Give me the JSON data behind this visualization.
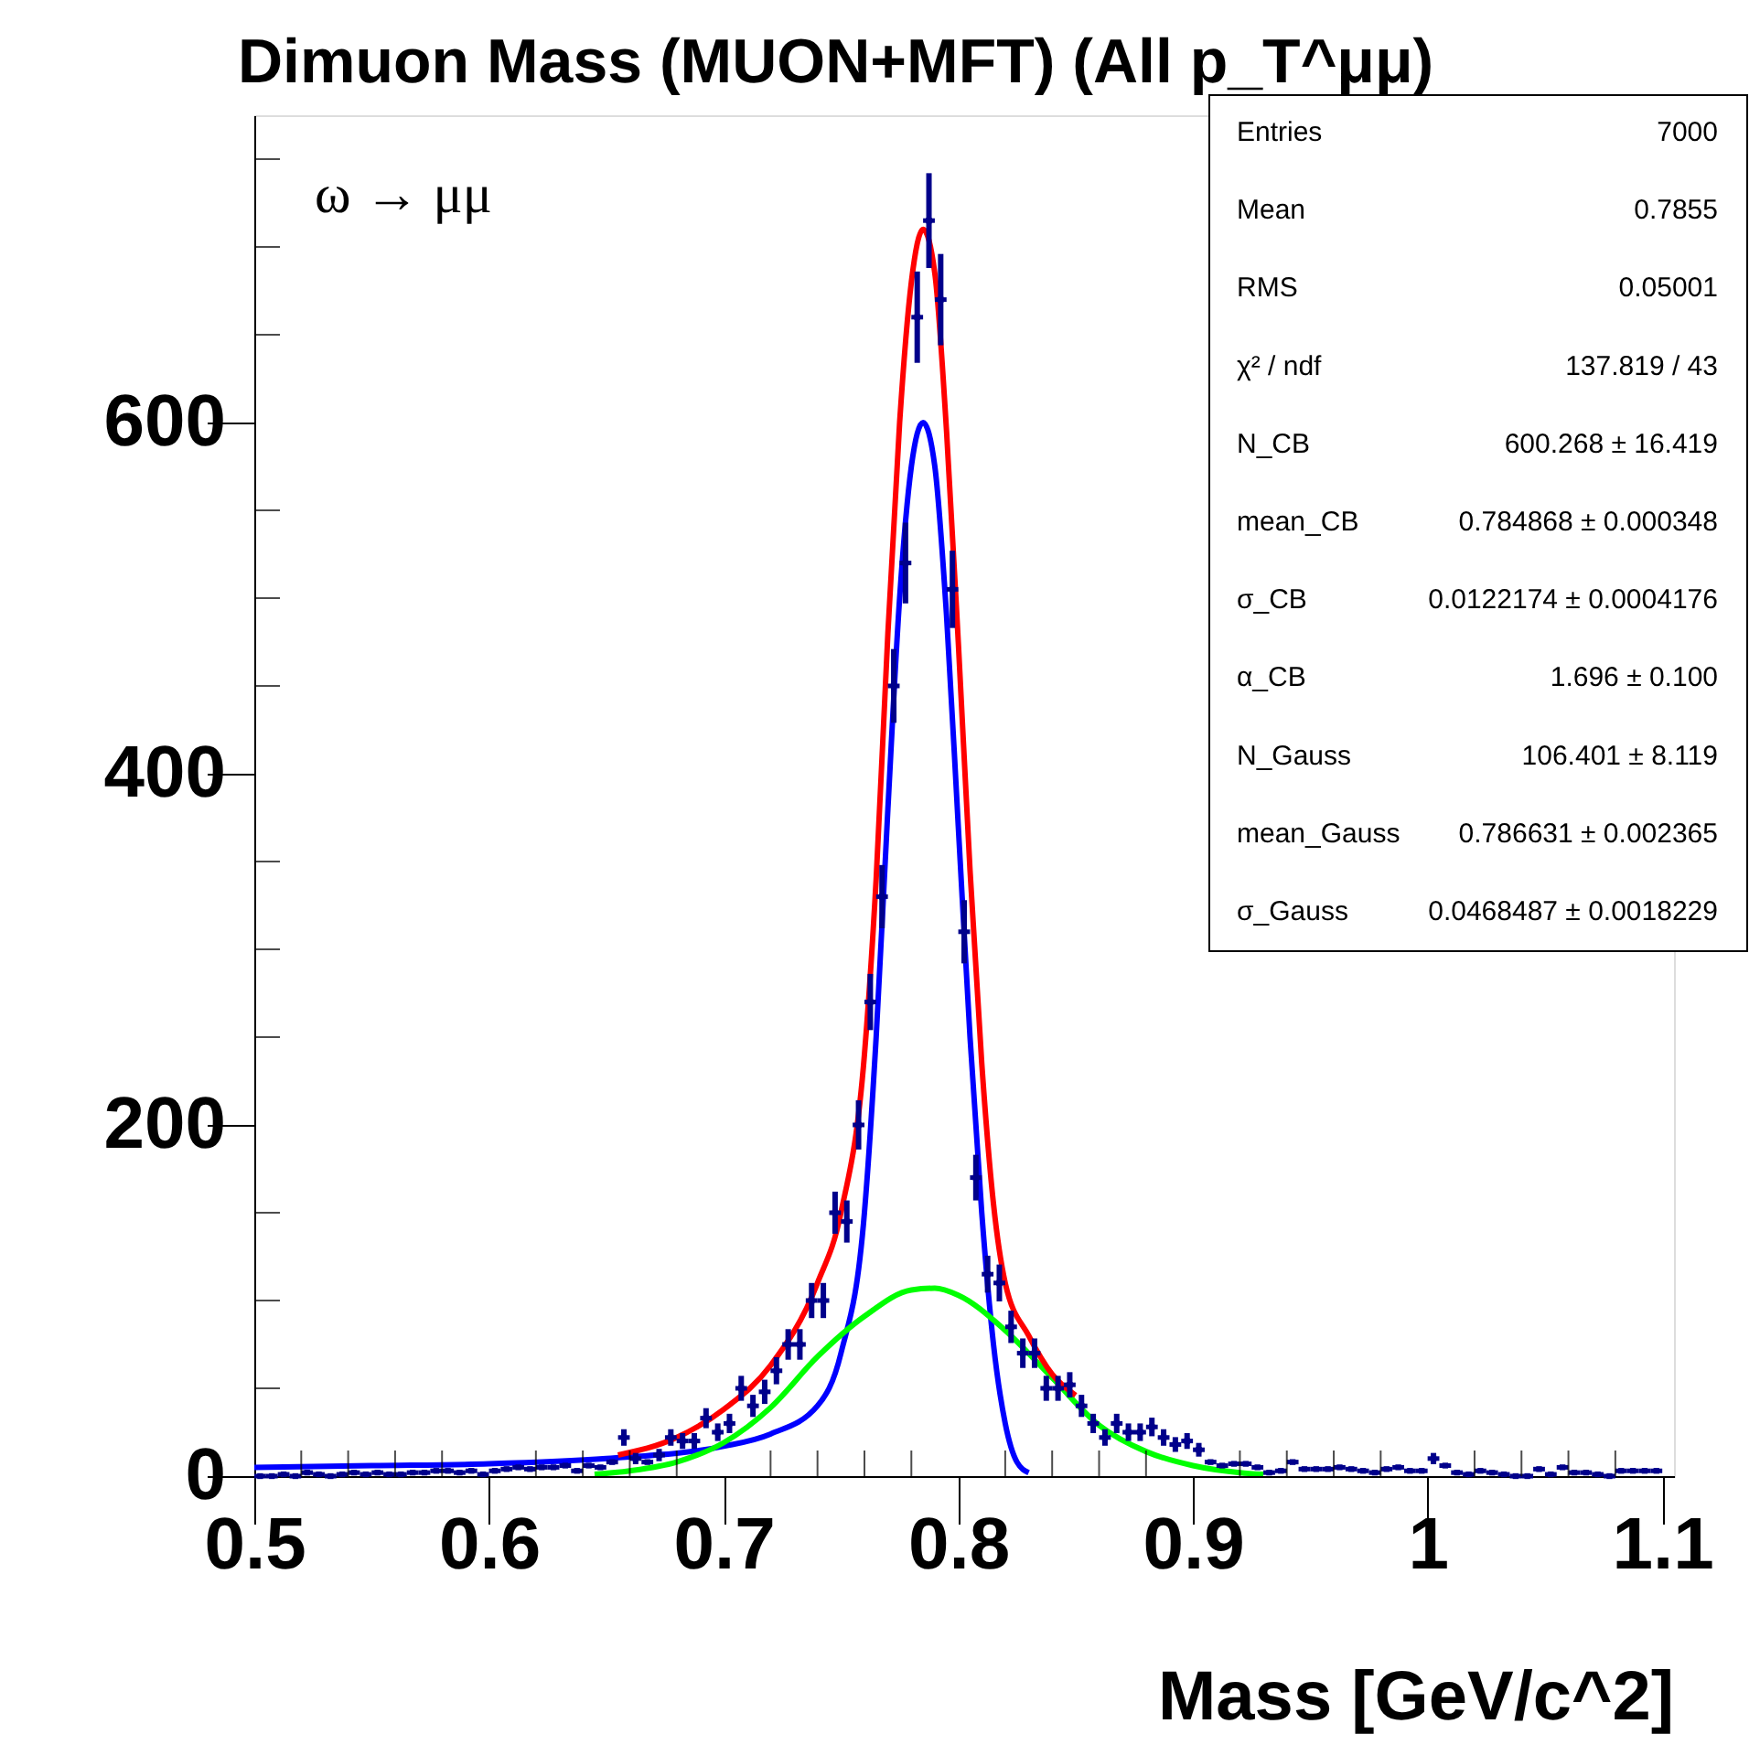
{
  "chart_data": {
    "type": "scatter",
    "title": "Dimuon Mass (MUON+MFT) (All p_T^μμ)",
    "xlabel": "Mass  [GeV/c^2]",
    "xlim": [
      0.5,
      1.105
    ],
    "ylim": [
      0,
      775
    ],
    "xticks": [
      0.5,
      {
        "value": 0.52,
        "label": null
      },
      {
        "value": 0.54,
        "label": null
      },
      {
        "value": 0.56,
        "label": null
      },
      {
        "value": 0.58,
        "label": null
      },
      0.6,
      {
        "value": 0.62,
        "label": null
      },
      {
        "value": 0.64,
        "label": null
      },
      {
        "value": 0.66,
        "label": null
      },
      {
        "value": 0.68,
        "label": null
      },
      0.7,
      {
        "value": 0.72,
        "label": null
      },
      {
        "value": 0.74,
        "label": null
      },
      {
        "value": 0.76,
        "label": null
      },
      {
        "value": 0.78,
        "label": null
      },
      0.8,
      {
        "value": 0.82,
        "label": null
      },
      {
        "value": 0.84,
        "label": null
      },
      {
        "value": 0.86,
        "label": null
      },
      {
        "value": 0.88,
        "label": null
      },
      0.9,
      {
        "value": 0.92,
        "label": null
      },
      {
        "value": 0.94,
        "label": null
      },
      {
        "value": 0.96,
        "label": null
      },
      {
        "value": 0.98,
        "label": null
      },
      1,
      {
        "value": 1.02,
        "label": null
      },
      {
        "value": 1.04,
        "label": null
      },
      {
        "value": 1.06,
        "label": null
      },
      {
        "value": 1.08,
        "label": null
      },
      1.1
    ],
    "yticks": [
      0,
      {
        "value": 50,
        "label": null
      },
      {
        "value": 100,
        "label": null
      },
      {
        "value": 150,
        "label": null
      },
      200,
      {
        "value": 250,
        "label": null
      },
      {
        "value": 300,
        "label": null
      },
      {
        "value": 350,
        "label": null
      },
      400,
      {
        "value": 450,
        "label": null
      },
      {
        "value": 500,
        "label": null
      },
      {
        "value": 550,
        "label": null
      },
      600,
      {
        "value": 650,
        "label": null
      },
      {
        "value": 700,
        "label": null
      },
      {
        "value": 750,
        "label": null
      }
    ],
    "grid": false,
    "marker": "none",
    "line_style": "solid",
    "annotations": [
      "ω → μμ",
      "Entries",
      "7000",
      "Mean",
      "0.7855",
      "RMS",
      "0.05001",
      "χ² / ndf",
      "137.819 / 43",
      "N_CB",
      "600.268 ± 16.419",
      "mean_CB",
      "0.784868 ± 0.000348",
      "σ_CB",
      "0.0122174 ± 0.0004176",
      "α_CB",
      "1.696 ± 0.100",
      "N_Gauss",
      "106.401 ± 8.119",
      "mean_Gauss",
      "0.786631 ± 0.002365",
      "σ_Gauss",
      "0.0468487 ± 0.0018229"
    ],
    "series": [
      {
        "color": "#00008b",
        "marker": "square",
        "x": [
          0.5025,
          0.5075,
          0.5125,
          0.5175,
          0.5225,
          0.5275,
          0.5325,
          0.5375,
          0.5425,
          0.5475,
          0.5525,
          0.5575,
          0.5625,
          0.5675,
          0.5725,
          0.5775,
          0.5825,
          0.5875,
          0.5925,
          0.5975,
          0.6025,
          0.6075,
          0.6125,
          0.6175,
          0.6225,
          0.6275,
          0.6325,
          0.6375,
          0.6425,
          0.6475,
          0.6525,
          0.6575,
          0.6625,
          0.6675,
          0.6725,
          0.6775,
          0.6825,
          0.6875,
          0.6925,
          0.6975,
          0.7025,
          0.7075,
          0.7125,
          0.7175,
          0.7225,
          0.7275,
          0.7325,
          0.7375,
          0.7425,
          0.7475,
          0.7525,
          0.7575,
          0.7625,
          0.7675,
          0.7725,
          0.7775,
          0.7825,
          0.7875,
          0.7925,
          0.7975,
          0.8025,
          0.8075,
          0.8125,
          0.8175,
          0.8225,
          0.8275,
          0.8325,
          0.8375,
          0.8425,
          0.8475,
          0.8525,
          0.8575,
          0.8625,
          0.8675,
          0.8725,
          0.8775,
          0.8825,
          0.8875,
          0.8925,
          0.8975,
          0.9025,
          0.9075,
          0.9125,
          0.9175,
          0.9225,
          0.9275,
          0.9325,
          0.9375,
          0.9425,
          0.9475,
          0.9525,
          0.9575,
          0.9625,
          0.9675,
          0.9725,
          0.9775,
          0.9825,
          0.9875,
          0.9925,
          0.9975,
          1.0025,
          1.0075,
          1.0125,
          1.0175,
          1.0225,
          1.0275,
          1.0325,
          1.0375,
          1.0425,
          1.0475,
          1.0525,
          1.0575,
          1.0625,
          1.0675,
          1.0725,
          1.0775,
          1.0825,
          1.0875,
          1.0925,
          1.0975
        ],
        "values": [
          0,
          0,
          1,
          0,
          2,
          1,
          0,
          1,
          2,
          1,
          2,
          1,
          1,
          2,
          2,
          3,
          3,
          2,
          3,
          1,
          3,
          4,
          5,
          4,
          5,
          5,
          6,
          3,
          6,
          5,
          8,
          22,
          10,
          8,
          12,
          22,
          20,
          20,
          33,
          25,
          30,
          50,
          40,
          48,
          60,
          75,
          75,
          100,
          100,
          150,
          145,
          200,
          270,
          330,
          450,
          520,
          660,
          715,
          670,
          505,
          310,
          170,
          115,
          110,
          85,
          70,
          70,
          50,
          50,
          52,
          40,
          30,
          22,
          30,
          25,
          25,
          28,
          22,
          18,
          20,
          15,
          8,
          6,
          7,
          7,
          5,
          2,
          3,
          8,
          4,
          4,
          4,
          5,
          4,
          3,
          2,
          4,
          5,
          3,
          3,
          10,
          6,
          2,
          1,
          3,
          2,
          1,
          0,
          0,
          4,
          1,
          5,
          2,
          2,
          1,
          0,
          3,
          3,
          3,
          3
        ],
        "errors": [
          null,
          null,
          null,
          null,
          null,
          null,
          null,
          null,
          null,
          null,
          null,
          null,
          null,
          null,
          null,
          null,
          null,
          null,
          null,
          null,
          null,
          null,
          null,
          null,
          null,
          null,
          null,
          null,
          null,
          null,
          null,
          4.7,
          3.2,
          null,
          3.5,
          4.7,
          4.5,
          4.5,
          5.7,
          5,
          5.5,
          7.1,
          6.3,
          6.9,
          7.7,
          8.7,
          8.7,
          10,
          10,
          12,
          12,
          14,
          16,
          18,
          21,
          23,
          26,
          27,
          26,
          22,
          18,
          13,
          10.5,
          10.5,
          9.2,
          8.4,
          8.4,
          7.1,
          7.1,
          7.2,
          6.3,
          5.5,
          4.7,
          5.5,
          5,
          5,
          5.3,
          4.7,
          4.2,
          4.5,
          3.9,
          null,
          null,
          null,
          null,
          null,
          null,
          null,
          null,
          null,
          null,
          null,
          null,
          null,
          null,
          null,
          null,
          null,
          null,
          null,
          3.2,
          null,
          null,
          null,
          null,
          null,
          null,
          null,
          null,
          null,
          null,
          null,
          null,
          null,
          null,
          null,
          null,
          null,
          null,
          null
        ],
        "xerrors": [
          0.0025,
          0.0025,
          0.0025,
          0.0025,
          0.0025,
          0.0025,
          0.0025,
          0.0025,
          0.0025,
          0.0025,
          0.0025,
          0.0025,
          0.0025,
          0.0025,
          0.0025,
          0.0025,
          0.0025,
          0.0025,
          0.0025,
          0.0025,
          0.0025,
          0.0025,
          0.0025,
          0.0025,
          0.0025,
          0.0025,
          0.0025,
          0.0025,
          0.0025,
          0.0025,
          0.0025,
          0.0025,
          0.0025,
          0.0025,
          0.0025,
          0.0025,
          0.0025,
          0.0025,
          0.0025,
          0.0025,
          0.0025,
          0.0025,
          0.0025,
          0.0025,
          0.0025,
          0.0025,
          0.0025,
          0.0025,
          0.0025,
          0.0025,
          0.0025,
          0.0025,
          0.0025,
          0.0025,
          0.0025,
          0.0025,
          0.0025,
          0.0025,
          0.0025,
          0.0025,
          0.0025,
          0.0025,
          0.0025,
          0.0025,
          0.0025,
          0.0025,
          0.0025,
          0.0025,
          0.0025,
          0.0025,
          0.0025,
          0.0025,
          0.0025,
          0.0025,
          0.0025,
          0.0025,
          0.0025,
          0.0025,
          0.0025,
          0.0025,
          0.0025,
          0.0025,
          0.0025,
          0.0025,
          0.0025,
          0.0025,
          0.0025,
          0.0025,
          0.0025,
          0.0025,
          0.0025,
          0.0025,
          0.0025,
          0.0025,
          0.0025,
          0.0025,
          0.0025,
          0.0025,
          0.0025,
          0.0025,
          0.0025,
          0.0025,
          0.0025,
          0.0025,
          0.0025,
          0.0025,
          0.0025,
          0.0025,
          0.0025,
          0.0025,
          0.0025,
          0.0025,
          0.0025,
          0.0025,
          0.0025,
          0.0025,
          0.0025,
          0.0025,
          0.0025,
          0.0025
        ]
      },
      {
        "type": "line",
        "color": "#0000ff",
        "x": [
          0.5,
          0.55,
          0.6,
          0.65,
          0.7,
          0.72,
          0.74,
          0.75,
          0.76,
          0.765,
          0.77,
          0.775,
          0.78,
          0.785,
          0.79,
          0.795,
          0.8,
          0.805,
          0.81,
          0.815,
          0.82,
          0.825,
          0.83
        ],
        "values": [
          5,
          6,
          7,
          10,
          17,
          24,
          40,
          70,
          150,
          250,
          380,
          500,
          575,
          600,
          575,
          490,
          370,
          250,
          150,
          75,
          30,
          8,
          2
        ]
      },
      {
        "type": "line",
        "color": "#00ff00",
        "x": [
          0.645,
          0.66,
          0.68,
          0.7,
          0.72,
          0.74,
          0.76,
          0.78,
          0.79,
          0.8,
          0.82,
          0.84,
          0.86,
          0.88,
          0.9,
          0.92,
          0.93
        ],
        "values": [
          1,
          3,
          8,
          19,
          39,
          68,
          91,
          106,
          107,
          103,
          83,
          56,
          29,
          14,
          6,
          2,
          1
        ]
      },
      {
        "type": "line",
        "color": "#ff0000",
        "x": [
          0.655,
          0.68,
          0.7,
          0.72,
          0.74,
          0.75,
          0.76,
          0.765,
          0.77,
          0.775,
          0.78,
          0.785,
          0.79,
          0.795,
          0.8,
          0.805,
          0.81,
          0.815,
          0.82,
          0.83,
          0.84,
          0.85
        ],
        "values": [
          12,
          22,
          38,
          63,
          110,
          150,
          240,
          340,
          480,
          600,
          680,
          710,
          685,
          595,
          475,
          345,
          235,
          155,
          110,
          80,
          58,
          46
        ]
      }
    ]
  }
}
